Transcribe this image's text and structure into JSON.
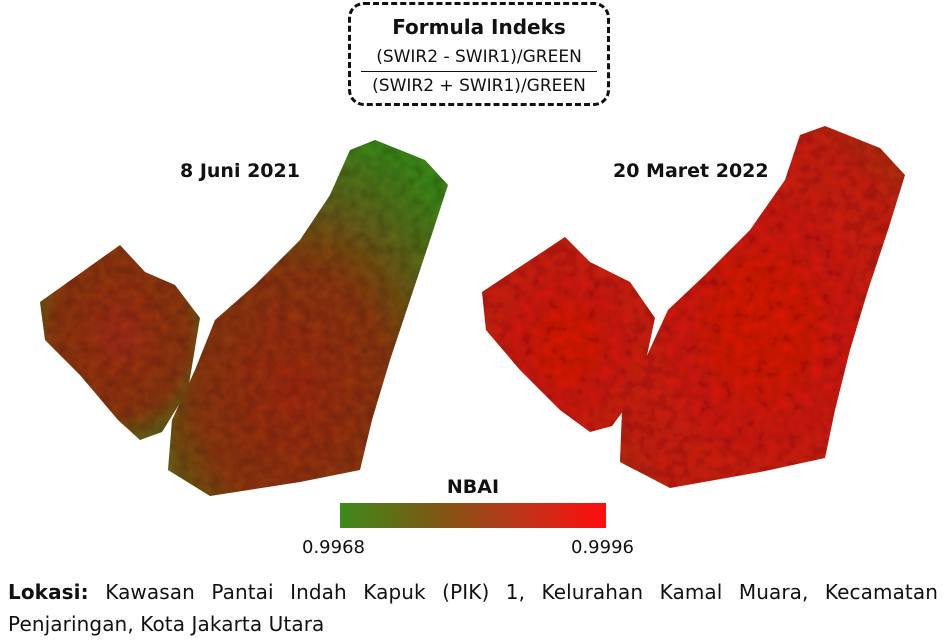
{
  "formula": {
    "title": "Formula Indeks",
    "numerator": "(SWIR2 - SWIR1)/GREEN",
    "denominator": "(SWIR2 + SWIR1)/GREEN"
  },
  "maps": [
    {
      "date": "8 Juni 2021",
      "dominant_color": "#3f8a1c",
      "secondary_color": "#9e2d14"
    },
    {
      "date": "20 Maret 2022",
      "dominant_color": "#e01a10",
      "secondary_color": "#c3301a"
    }
  ],
  "legend": {
    "title": "NBAI",
    "min_label": "0.9968",
    "max_label": "0.9996",
    "color_low": "#3e8a1a",
    "color_high": "#ff0d0d"
  },
  "location": {
    "label": "Lokasi:",
    "text": "Kawasan Pantai Indah Kapuk (PIK) 1, Kelurahan Kamal Muara, Kecamatan Penjaringan, Kota Jakarta Utara"
  }
}
